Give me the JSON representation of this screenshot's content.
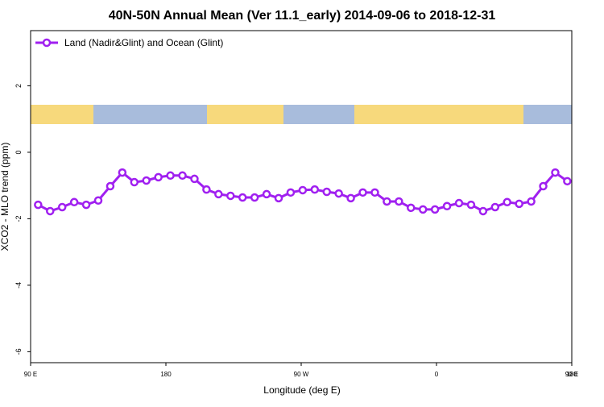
{
  "chart_data": {
    "type": "line",
    "title": "40N-50N Annual Mean (Ver 11.1_early)   2014-09-06 to 2018-12-31",
    "xlabel": "Longitude (deg E)",
    "ylabel": "XCO2 - MLO trend (ppm)",
    "x": [
      95,
      103,
      111,
      119,
      127,
      135,
      143,
      151,
      159,
      167,
      175,
      183,
      191,
      199,
      207,
      215,
      223,
      231,
      239,
      247,
      255,
      263,
      271,
      279,
      287,
      295,
      303,
      311,
      319,
      327,
      335,
      343,
      351,
      359,
      367,
      375,
      383,
      391,
      399,
      407,
      415,
      423,
      431,
      439,
      447
    ],
    "series": [
      {
        "name": "Land (Nadir&Glint) and Ocean (Glint)",
        "color": "#a020f0",
        "values": [
          -1.58,
          -1.77,
          -1.65,
          -1.5,
          -1.58,
          -1.45,
          -1.02,
          -0.61,
          -0.9,
          -0.85,
          -0.75,
          -0.7,
          -0.7,
          -0.8,
          -1.12,
          -1.26,
          -1.31,
          -1.36,
          -1.36,
          -1.26,
          -1.38,
          -1.21,
          -1.14,
          -1.12,
          -1.19,
          -1.24,
          -1.38,
          -1.21,
          -1.21,
          -1.48,
          -1.48,
          -1.67,
          -1.72,
          -1.72,
          -1.62,
          -1.53,
          -1.58,
          -1.77,
          -1.65,
          -1.5,
          -1.55,
          -1.48,
          -1.02,
          -0.61,
          -0.87
        ]
      }
    ],
    "xlim": [
      90,
      450
    ],
    "xticks": [
      {
        "value": 90,
        "label": "90 E"
      },
      180,
      {
        "value": 270,
        "label": "90 W"
      },
      {
        "value": 360,
        "label": "0"
      },
      {
        "value": 450,
        "label": "90 E"
      },
      {
        "value": 540,
        "label": "180"
      }
    ],
    "ylim": [
      -6.33,
      3.66
    ],
    "yticks": [
      -6,
      -4,
      -2,
      0,
      2
    ],
    "legend": "top-left"
  }
}
